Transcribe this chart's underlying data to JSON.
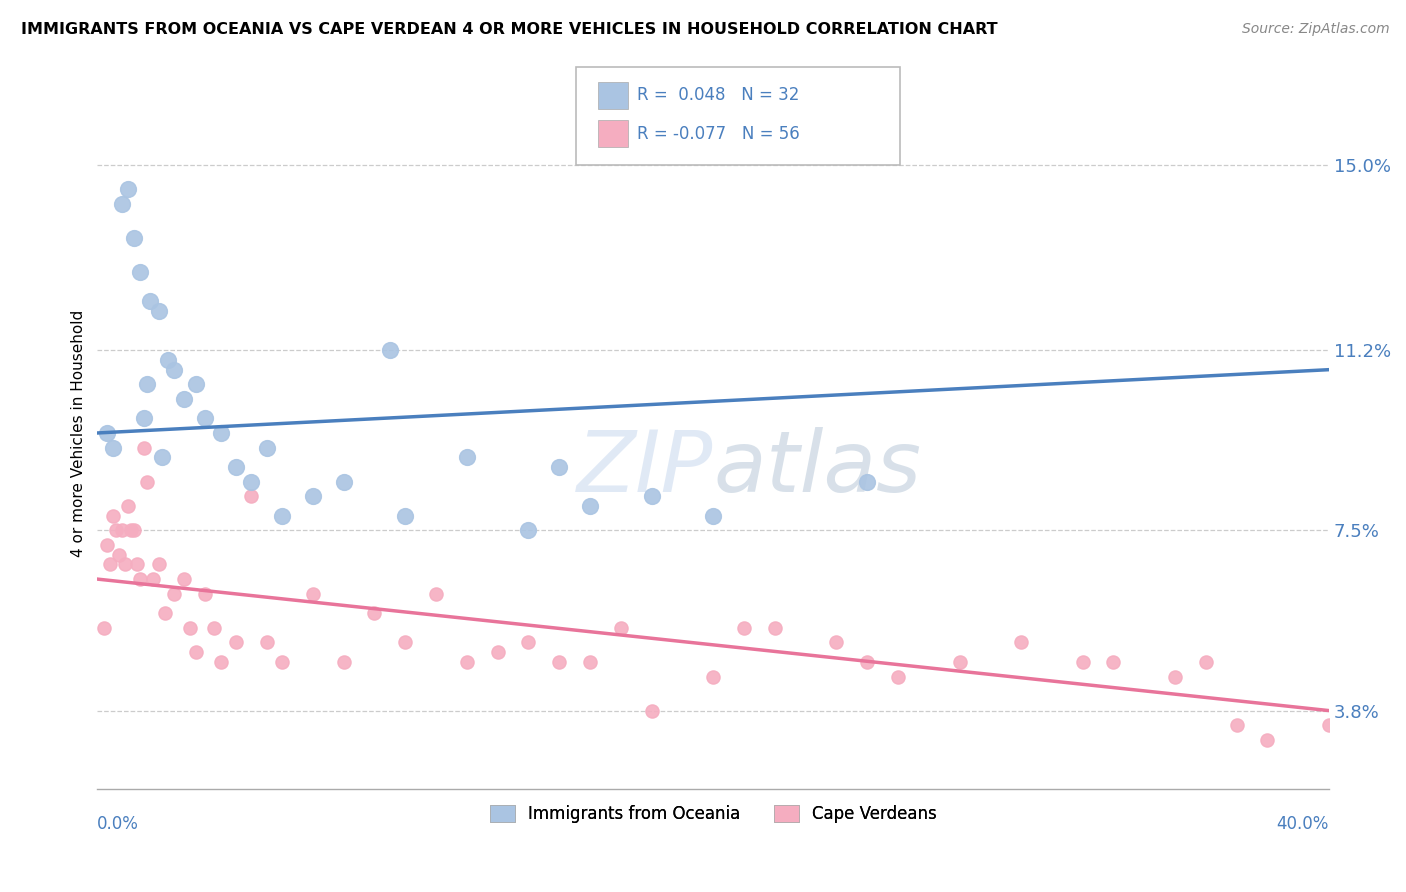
{
  "title": "IMMIGRANTS FROM OCEANIA VS CAPE VERDEAN 4 OR MORE VEHICLES IN HOUSEHOLD CORRELATION CHART",
  "source": "Source: ZipAtlas.com",
  "ylabel": "4 or more Vehicles in Household",
  "yticks": [
    3.8,
    7.5,
    11.2,
    15.0
  ],
  "ytick_labels": [
    "3.8%",
    "7.5%",
    "11.2%",
    "15.0%"
  ],
  "xmin": 0.0,
  "xmax": 40.0,
  "ymin": 2.2,
  "ymax": 16.8,
  "series1_label": "Immigrants from Oceania",
  "series2_label": "Cape Verdeans",
  "series1_color": "#aac4e2",
  "series2_color": "#f5adc0",
  "series1_line_color": "#4a7fbe",
  "series2_line_color": "#e8749a",
  "trend_text_color": "#4a7fbe",
  "watermark_color": "#d0dff0",
  "series1_x": [
    0.3,
    0.5,
    0.8,
    1.0,
    1.2,
    1.4,
    1.5,
    1.6,
    1.7,
    2.0,
    2.1,
    2.3,
    2.5,
    2.8,
    3.2,
    3.5,
    4.0,
    4.5,
    5.0,
    5.5,
    6.0,
    7.0,
    8.0,
    9.5,
    10.0,
    12.0,
    14.0,
    15.0,
    16.0,
    18.0,
    20.0,
    25.0
  ],
  "series1_y": [
    9.5,
    9.2,
    14.2,
    14.5,
    13.5,
    12.8,
    9.8,
    10.5,
    12.2,
    12.0,
    9.0,
    11.0,
    10.8,
    10.2,
    10.5,
    9.8,
    9.5,
    8.8,
    8.5,
    9.2,
    7.8,
    8.2,
    8.5,
    11.2,
    7.8,
    9.0,
    7.5,
    8.8,
    8.0,
    8.2,
    7.8,
    8.5
  ],
  "series2_x": [
    0.2,
    0.3,
    0.4,
    0.5,
    0.6,
    0.7,
    0.8,
    0.9,
    1.0,
    1.1,
    1.2,
    1.3,
    1.4,
    1.5,
    1.6,
    1.8,
    2.0,
    2.2,
    2.5,
    2.8,
    3.0,
    3.2,
    3.5,
    3.8,
    4.0,
    4.5,
    5.0,
    5.5,
    6.0,
    7.0,
    8.0,
    9.0,
    10.0,
    11.0,
    12.0,
    13.0,
    14.0,
    15.0,
    16.0,
    17.0,
    18.0,
    20.0,
    21.0,
    22.0,
    24.0,
    25.0,
    26.0,
    28.0,
    30.0,
    32.0,
    33.0,
    35.0,
    36.0,
    37.0,
    38.0,
    40.0
  ],
  "series2_y": [
    5.5,
    7.2,
    6.8,
    7.8,
    7.5,
    7.0,
    7.5,
    6.8,
    8.0,
    7.5,
    7.5,
    6.8,
    6.5,
    9.2,
    8.5,
    6.5,
    6.8,
    5.8,
    6.2,
    6.5,
    5.5,
    5.0,
    6.2,
    5.5,
    4.8,
    5.2,
    8.2,
    5.2,
    4.8,
    6.2,
    4.8,
    5.8,
    5.2,
    6.2,
    4.8,
    5.0,
    5.2,
    4.8,
    4.8,
    5.5,
    3.8,
    4.5,
    5.5,
    5.5,
    5.2,
    4.8,
    4.5,
    4.8,
    5.2,
    4.8,
    4.8,
    4.5,
    4.8,
    3.5,
    3.2,
    3.5
  ],
  "trend1_x0": 0.0,
  "trend1_x1": 40.0,
  "trend1_y0": 9.5,
  "trend1_y1": 10.8,
  "trend2_x0": 0.0,
  "trend2_x1": 40.0,
  "trend2_y0": 6.5,
  "trend2_y1": 3.8
}
